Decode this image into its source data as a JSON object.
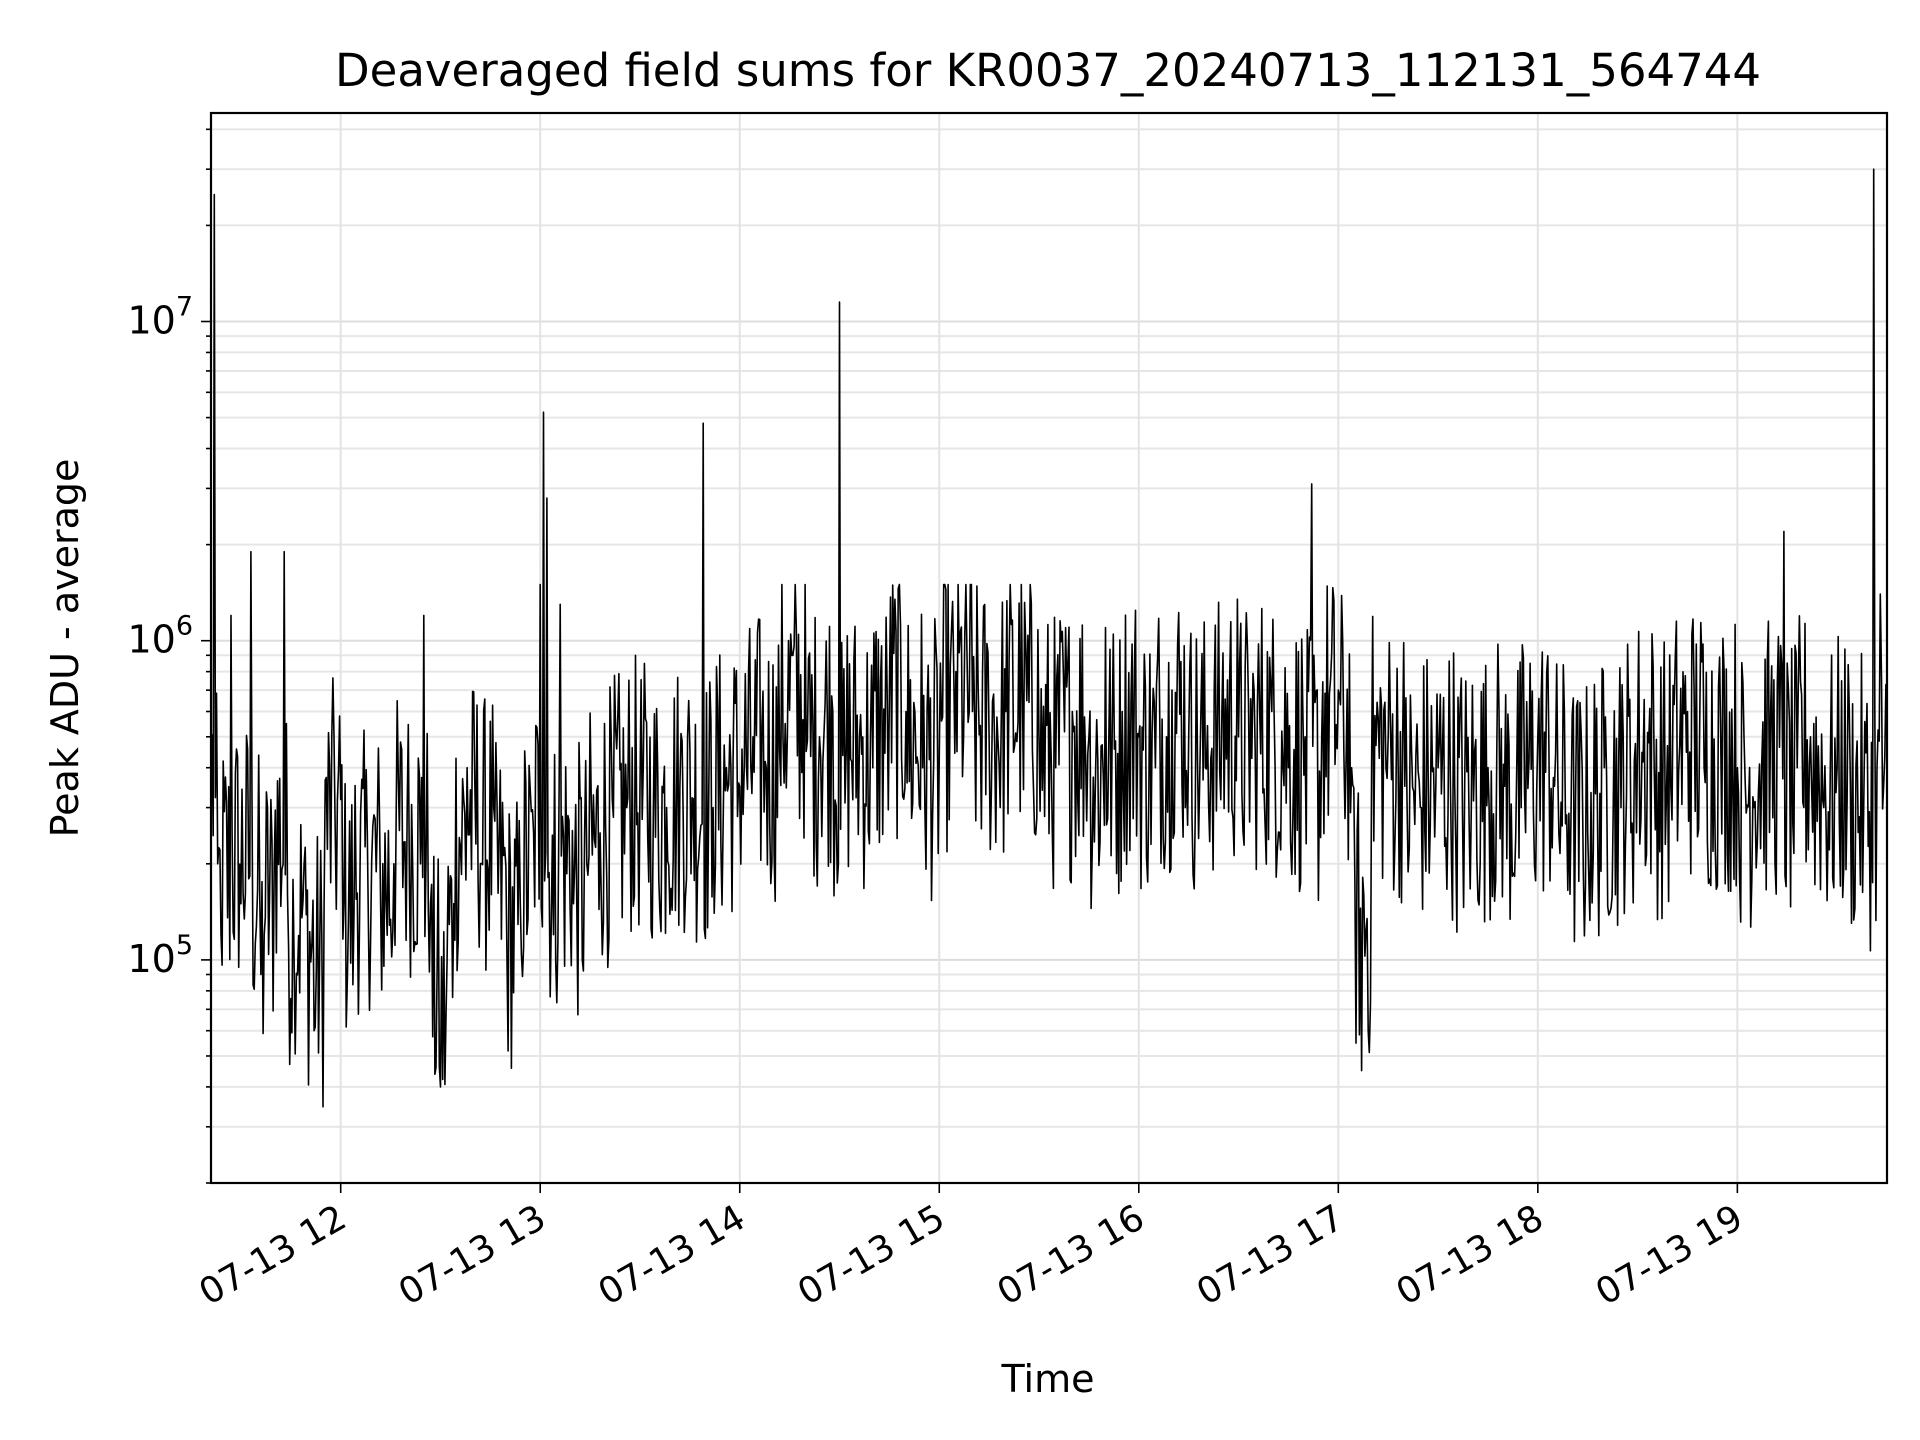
{
  "chart_data": {
    "type": "line",
    "title": "Deaveraged field sums for KR0037_20240713_112131_564744",
    "xlabel": "Time",
    "ylabel": "Peak ADU - average",
    "yscale": "log",
    "xlim": [
      "07-13 11:21",
      "07-13 19:45"
    ],
    "ylim": [
      20000,
      45000000
    ],
    "grid": true,
    "line_color": "#000000",
    "x_ticks": [
      "07-13 12",
      "07-13 13",
      "07-13 14",
      "07-13 15",
      "07-13 16",
      "07-13 17",
      "07-13 18",
      "07-13 19"
    ],
    "y_ticks": [
      {
        "base": "10",
        "exp": "5",
        "value": 100000
      },
      {
        "base": "10",
        "exp": "6",
        "value": 1000000
      },
      {
        "base": "10",
        "exp": "7",
        "value": 10000000
      }
    ],
    "series": [
      {
        "x": [
          "07-13 11:21",
          "07-13 11:22",
          "07-13 11:23",
          "07-13 11:24",
          "07-13 11:27",
          "07-13 11:30",
          "07-13 11:33",
          "07-13 11:36",
          "07-13 11:37",
          "07-13 11:40",
          "07-13 11:43",
          "07-13 11:44",
          "07-13 11:46",
          "07-13 11:49",
          "07-13 11:52",
          "07-13 11:55",
          "07-13 11:58",
          "07-13 12:01",
          "07-13 12:04",
          "07-13 12:08",
          "07-13 12:12",
          "07-13 12:16",
          "07-13 12:20",
          "07-13 12:24",
          "07-13 12:25",
          "07-13 12:27",
          "07-13 12:30",
          "07-13 12:32",
          "07-13 12:34",
          "07-13 12:38",
          "07-13 12:42",
          "07-13 12:46",
          "07-13 12:50",
          "07-13 12:54",
          "07-13 12:58",
          "07-13 13:00",
          "07-13 13:01",
          "07-13 13:02",
          "07-13 13:04",
          "07-13 13:06",
          "07-13 13:10",
          "07-13 13:14",
          "07-13 13:18",
          "07-13 13:22",
          "07-13 13:26",
          "07-13 13:30",
          "07-13 13:34",
          "07-13 13:38",
          "07-13 13:42",
          "07-13 13:46",
          "07-13 13:49",
          "07-13 13:52",
          "07-13 13:56",
          "07-13 14:00",
          "07-13 14:04",
          "07-13 14:08",
          "07-13 14:12",
          "07-13 14:16",
          "07-13 14:20",
          "07-13 14:24",
          "07-13 14:28",
          "07-13 14:30",
          "07-13 14:32",
          "07-13 14:36",
          "07-13 14:40",
          "07-13 14:45",
          "07-13 14:50",
          "07-13 14:55",
          "07-13 15:00",
          "07-13 15:05",
          "07-13 15:10",
          "07-13 15:15",
          "07-13 15:20",
          "07-13 15:25",
          "07-13 15:30",
          "07-13 15:35",
          "07-13 15:40",
          "07-13 15:45",
          "07-13 15:50",
          "07-13 15:55",
          "07-13 16:00",
          "07-13 16:05",
          "07-13 16:10",
          "07-13 16:15",
          "07-13 16:20",
          "07-13 16:25",
          "07-13 16:30",
          "07-13 16:35",
          "07-13 16:40",
          "07-13 16:45",
          "07-13 16:50",
          "07-13 16:52",
          "07-13 16:55",
          "07-13 17:00",
          "07-13 17:04",
          "07-13 17:07",
          "07-13 17:10",
          "07-13 17:15",
          "07-13 17:20",
          "07-13 17:25",
          "07-13 17:30",
          "07-13 17:35",
          "07-13 17:40",
          "07-13 17:45",
          "07-13 17:50",
          "07-13 17:55",
          "07-13 18:00",
          "07-13 18:05",
          "07-13 18:10",
          "07-13 18:15",
          "07-13 18:20",
          "07-13 18:25",
          "07-13 18:30",
          "07-13 18:35",
          "07-13 18:40",
          "07-13 18:45",
          "07-13 18:50",
          "07-13 18:55",
          "07-13 19:00",
          "07-13 19:05",
          "07-13 19:10",
          "07-13 19:14",
          "07-13 19:18",
          "07-13 19:22",
          "07-13 19:26",
          "07-13 19:30",
          "07-13 19:34",
          "07-13 19:38",
          "07-13 19:41",
          "07-13 19:42",
          "07-13 19:43",
          "07-13 19:45"
        ],
        "values": [
          450000,
          25000000,
          200000,
          120000,
          1200000,
          150000,
          1900000,
          90000,
          120000,
          200000,
          1900000,
          160000,
          100000,
          200000,
          60000,
          150000,
          500000,
          150000,
          140000,
          250000,
          150000,
          200000,
          300000,
          200000,
          1200000,
          150000,
          40000,
          100000,
          150000,
          400000,
          200000,
          300000,
          100000,
          150000,
          250000,
          1500000,
          5200000,
          2800000,
          120000,
          1300000,
          150000,
          200000,
          250000,
          280000,
          300000,
          350000,
          280000,
          300000,
          350000,
          320000,
          4800000,
          300000,
          400000,
          350000,
          500000,
          400000,
          450000,
          900000,
          450000,
          500000,
          600000,
          11500000,
          450000,
          500000,
          400000,
          700000,
          600000,
          400000,
          450000,
          800000,
          600000,
          500000,
          600000,
          700000,
          500000,
          400000,
          600000,
          500000,
          1100000,
          600000,
          500000,
          400000,
          700000,
          500000,
          400000,
          600000,
          500000,
          450000,
          600000,
          400000,
          500000,
          3100000,
          500000,
          700000,
          400000,
          45000,
          400000,
          500000,
          350000,
          300000,
          400000,
          350000,
          300000,
          400000,
          350000,
          300000,
          500000,
          350000,
          300000,
          250000,
          400000,
          300000,
          500000,
          400000,
          350000,
          600000,
          400000,
          500000,
          400000,
          300000,
          600000,
          2200000,
          400000,
          500000,
          300000,
          400000,
          350000,
          300000,
          30000000,
          400000,
          1400000,
          450000
        ]
      }
    ]
  }
}
